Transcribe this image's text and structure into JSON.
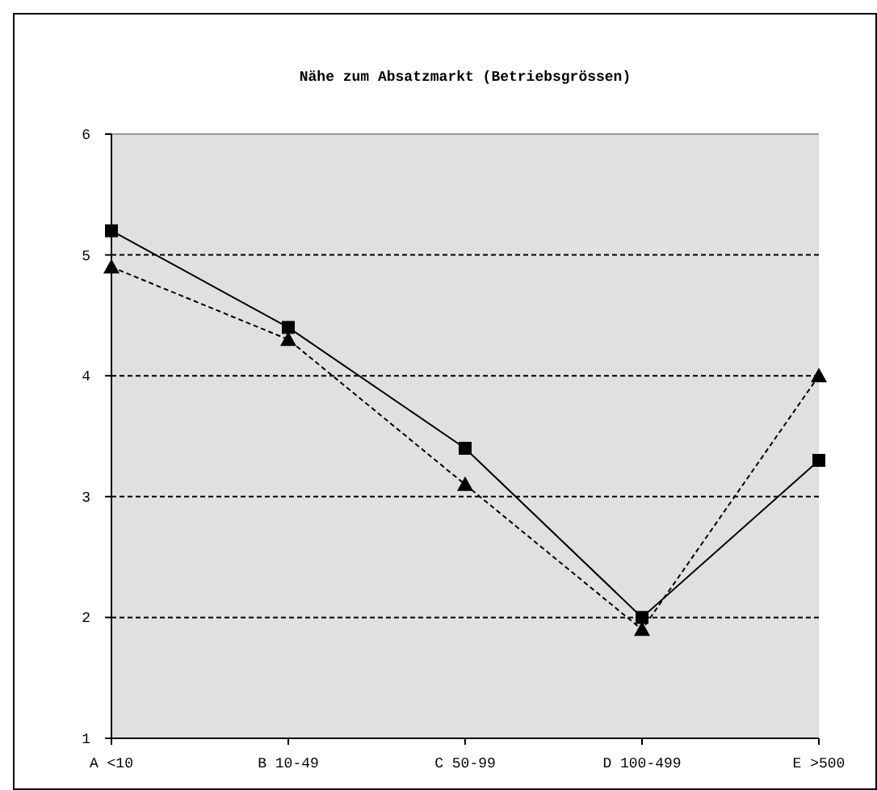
{
  "chart_data": {
    "type": "line",
    "title": "Nähe zum Absatzmarkt (Betriebsgrössen)",
    "categories": [
      "A <10",
      "B 10-49",
      "C 50-99",
      "D 100-499",
      "E >500"
    ],
    "series": [
      {
        "color": "#000000",
        "values": [
          5.2,
          4.4,
          3.4,
          2.0,
          3.3
        ],
        "marker": "square",
        "line_style": "solid"
      },
      {
        "color": "#000000",
        "values": [
          4.9,
          4.3,
          3.1,
          1.9,
          4.0
        ],
        "marker": "triangle",
        "line_style": "dashed"
      }
    ],
    "ylim": [
      1,
      6
    ],
    "yticks": [
      1,
      2,
      3,
      4,
      5,
      6
    ],
    "grid": "y"
  }
}
